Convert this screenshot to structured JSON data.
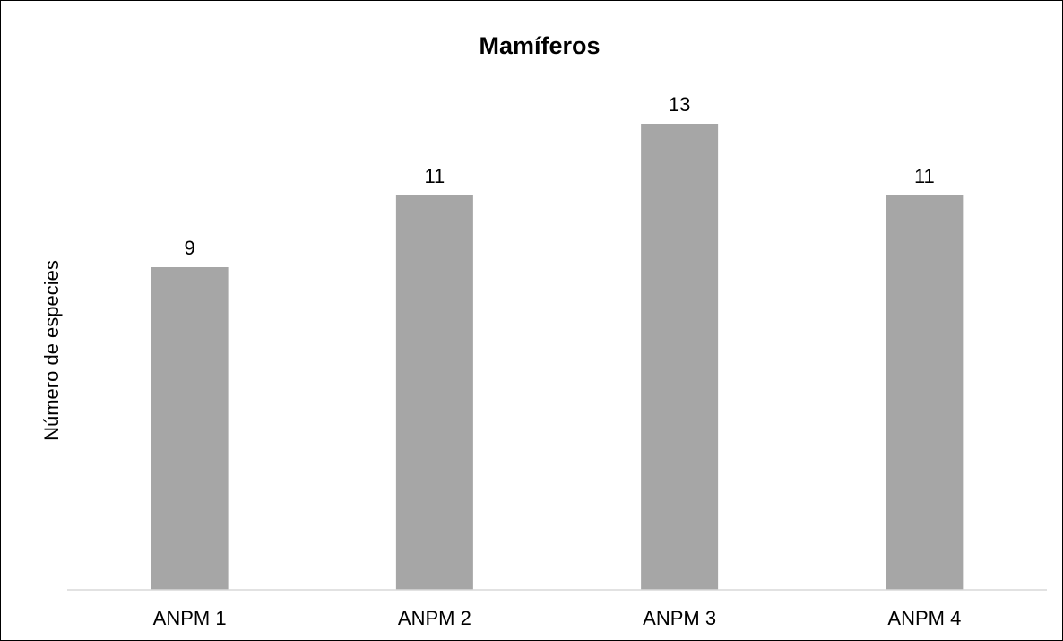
{
  "chart_data": {
    "type": "bar",
    "title": "Mamíferos",
    "ylabel": "Número de especies",
    "xlabel": "",
    "categories": [
      "ANPM 1",
      "ANPM 2",
      "ANPM 3",
      "ANPM 4"
    ],
    "values": [
      9,
      11,
      13,
      11
    ],
    "data_labels": [
      "9",
      "11",
      "13",
      "11"
    ],
    "ylim": [
      0,
      16
    ],
    "bar_color": "#a6a6a6",
    "axis_color": "#d9d9d9",
    "grid": false,
    "legend": "none"
  }
}
